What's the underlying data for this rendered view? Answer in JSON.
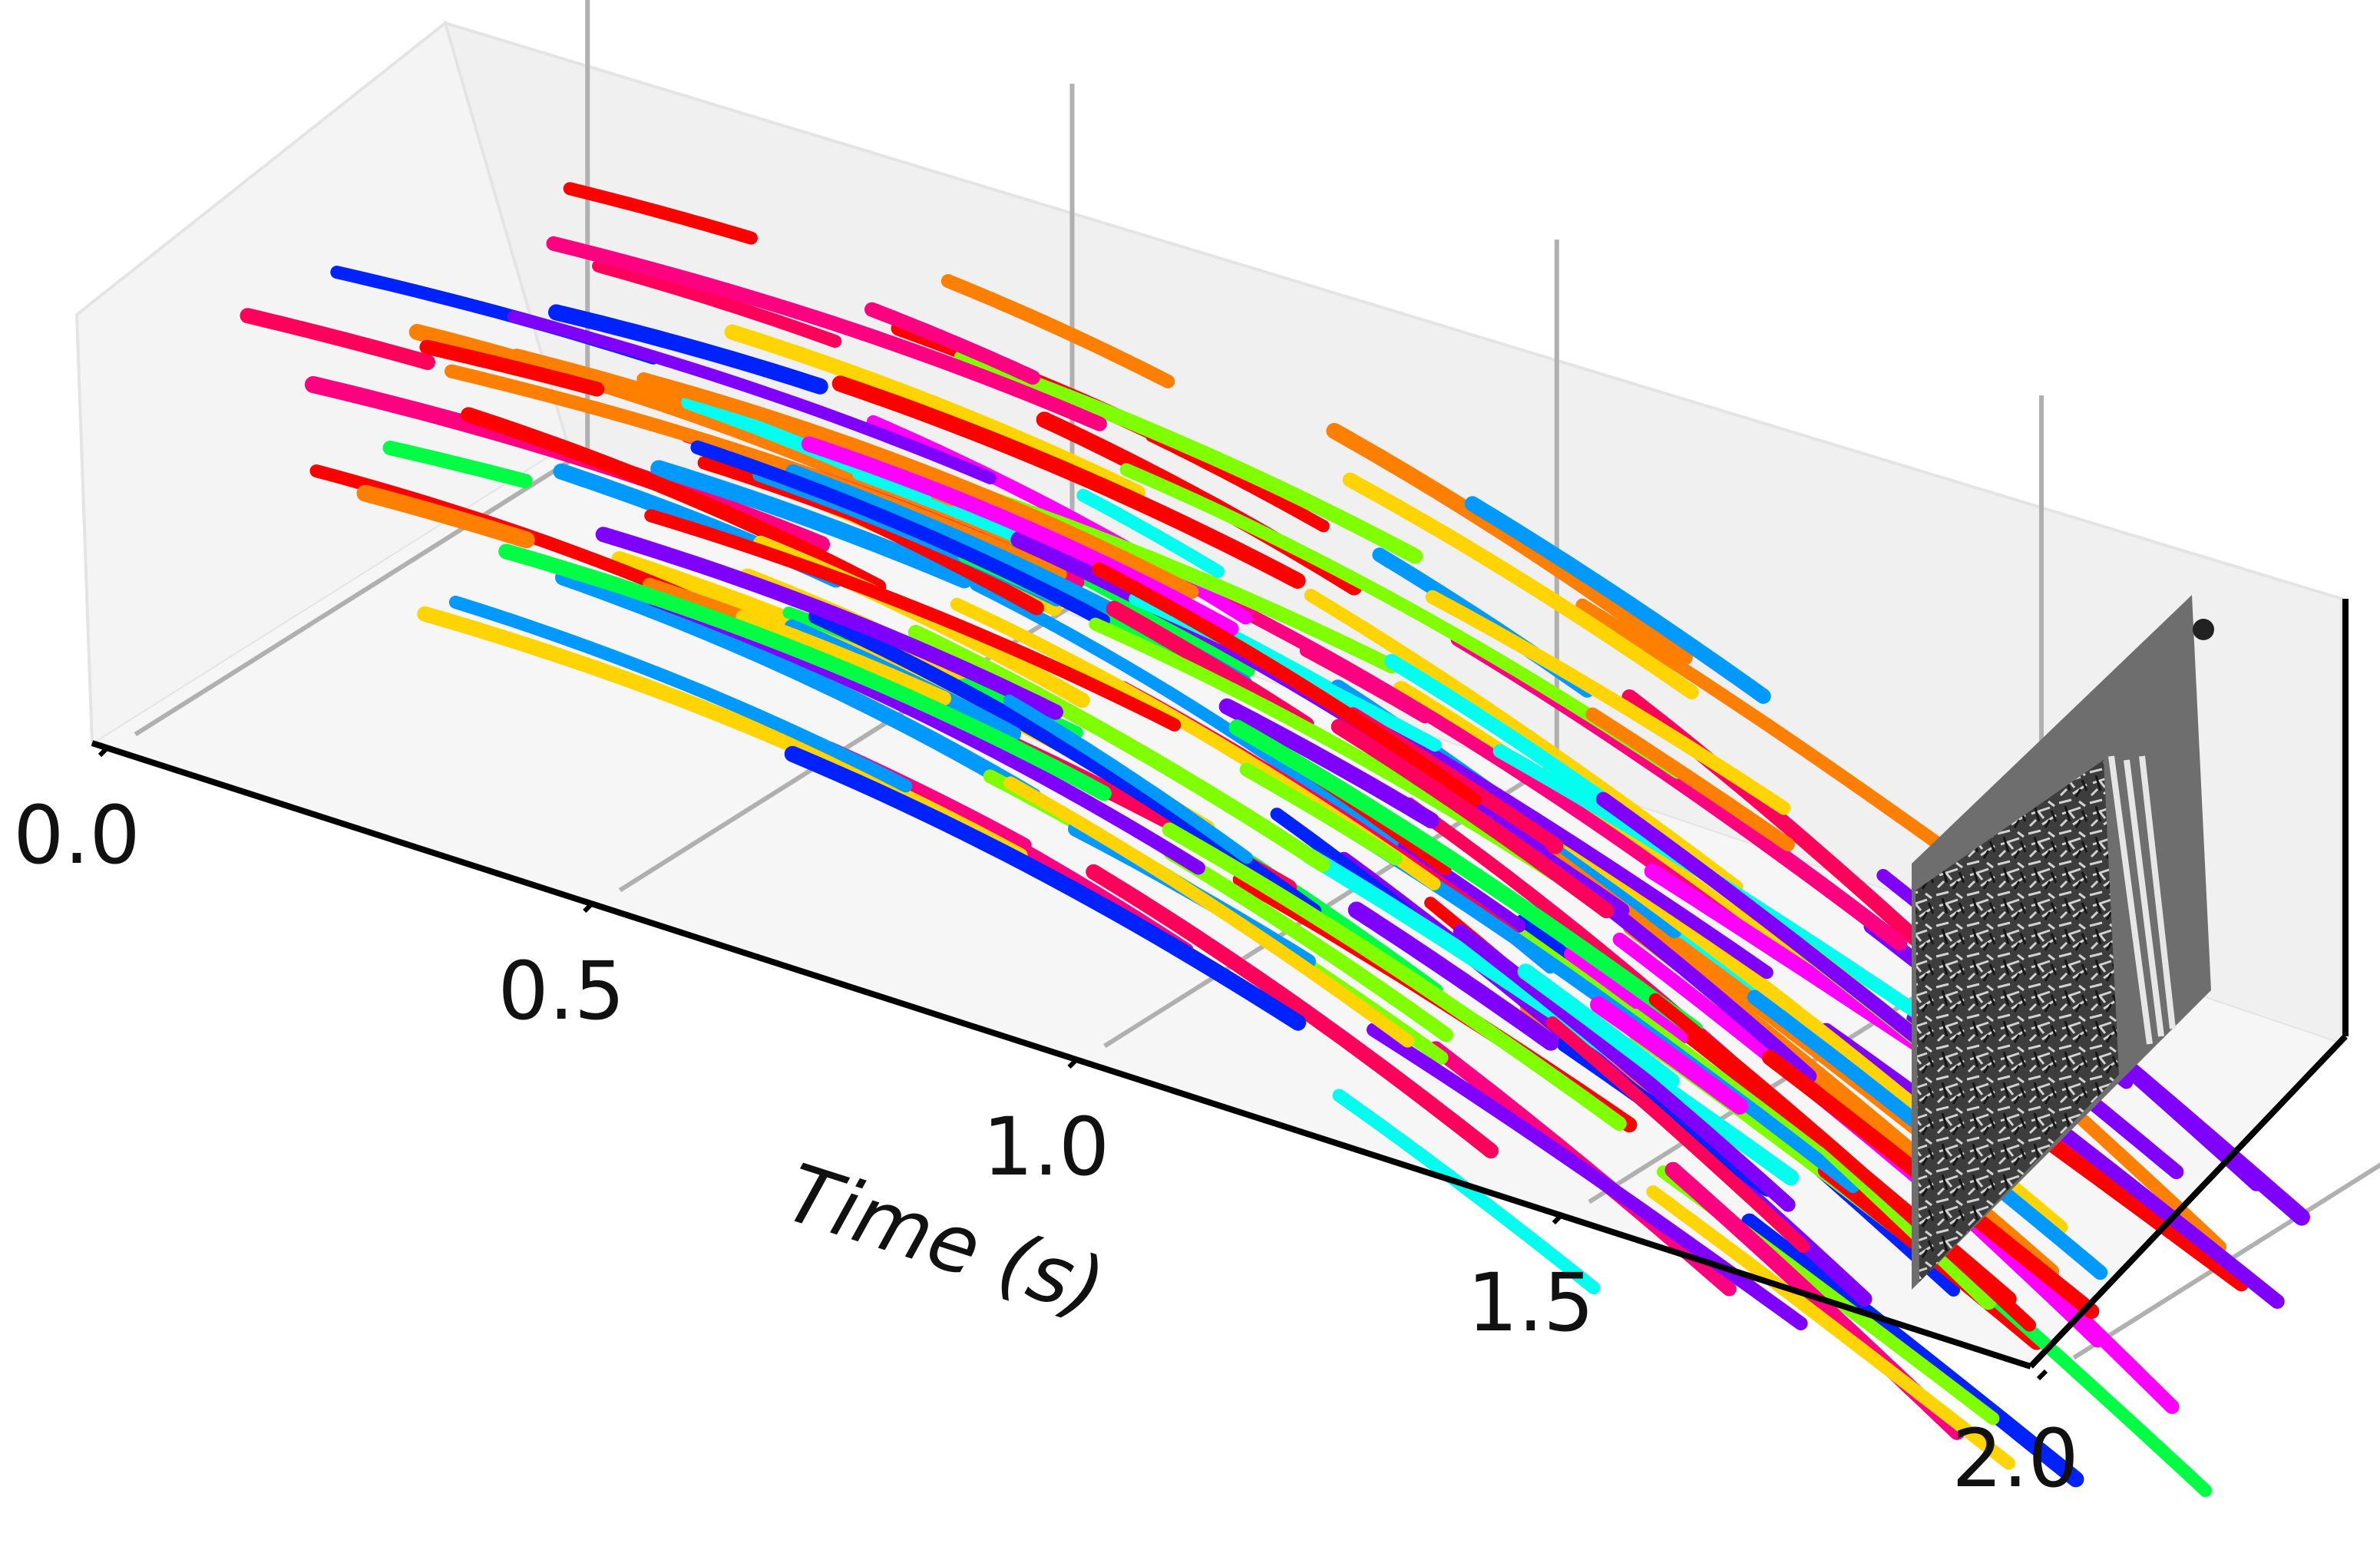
{
  "chart_data": {
    "type": "line",
    "projection": "3d",
    "title": "",
    "xlabel": "Time (s)",
    "ylabel": "",
    "zlabel": "",
    "xlim": [
      0.0,
      2.0
    ],
    "ticks": [
      {
        "value": 0.0,
        "label": "0.0"
      },
      {
        "value": 0.5,
        "label": "0.5"
      },
      {
        "value": 1.0,
        "label": "1.0"
      },
      {
        "value": 1.5,
        "label": "1.5"
      },
      {
        "value": 2.0,
        "label": "2.0"
      }
    ],
    "grid": true,
    "legend": "none",
    "palette": [
      "#ff0000",
      "#ff7f00",
      "#ffd400",
      "#80ff00",
      "#00ff44",
      "#00ffee",
      "#0099ff",
      "#0022ff",
      "#8000ff",
      "#ff00ff",
      "#ff0080",
      "#ff005a"
    ],
    "end_frame": {
      "x": 2.0,
      "style": "grayscale event frame"
    },
    "series_count": 160,
    "trajectory_model": "tracked point trajectories through time; each track is a short segment starting at t0 and lasting dur seconds, drifting in the projected image plane"
  },
  "figure": {
    "background": "#ffffff",
    "pane_color": "#f1f1f1",
    "grid_color": "#b0b0b0",
    "axis_color": "#000000"
  }
}
